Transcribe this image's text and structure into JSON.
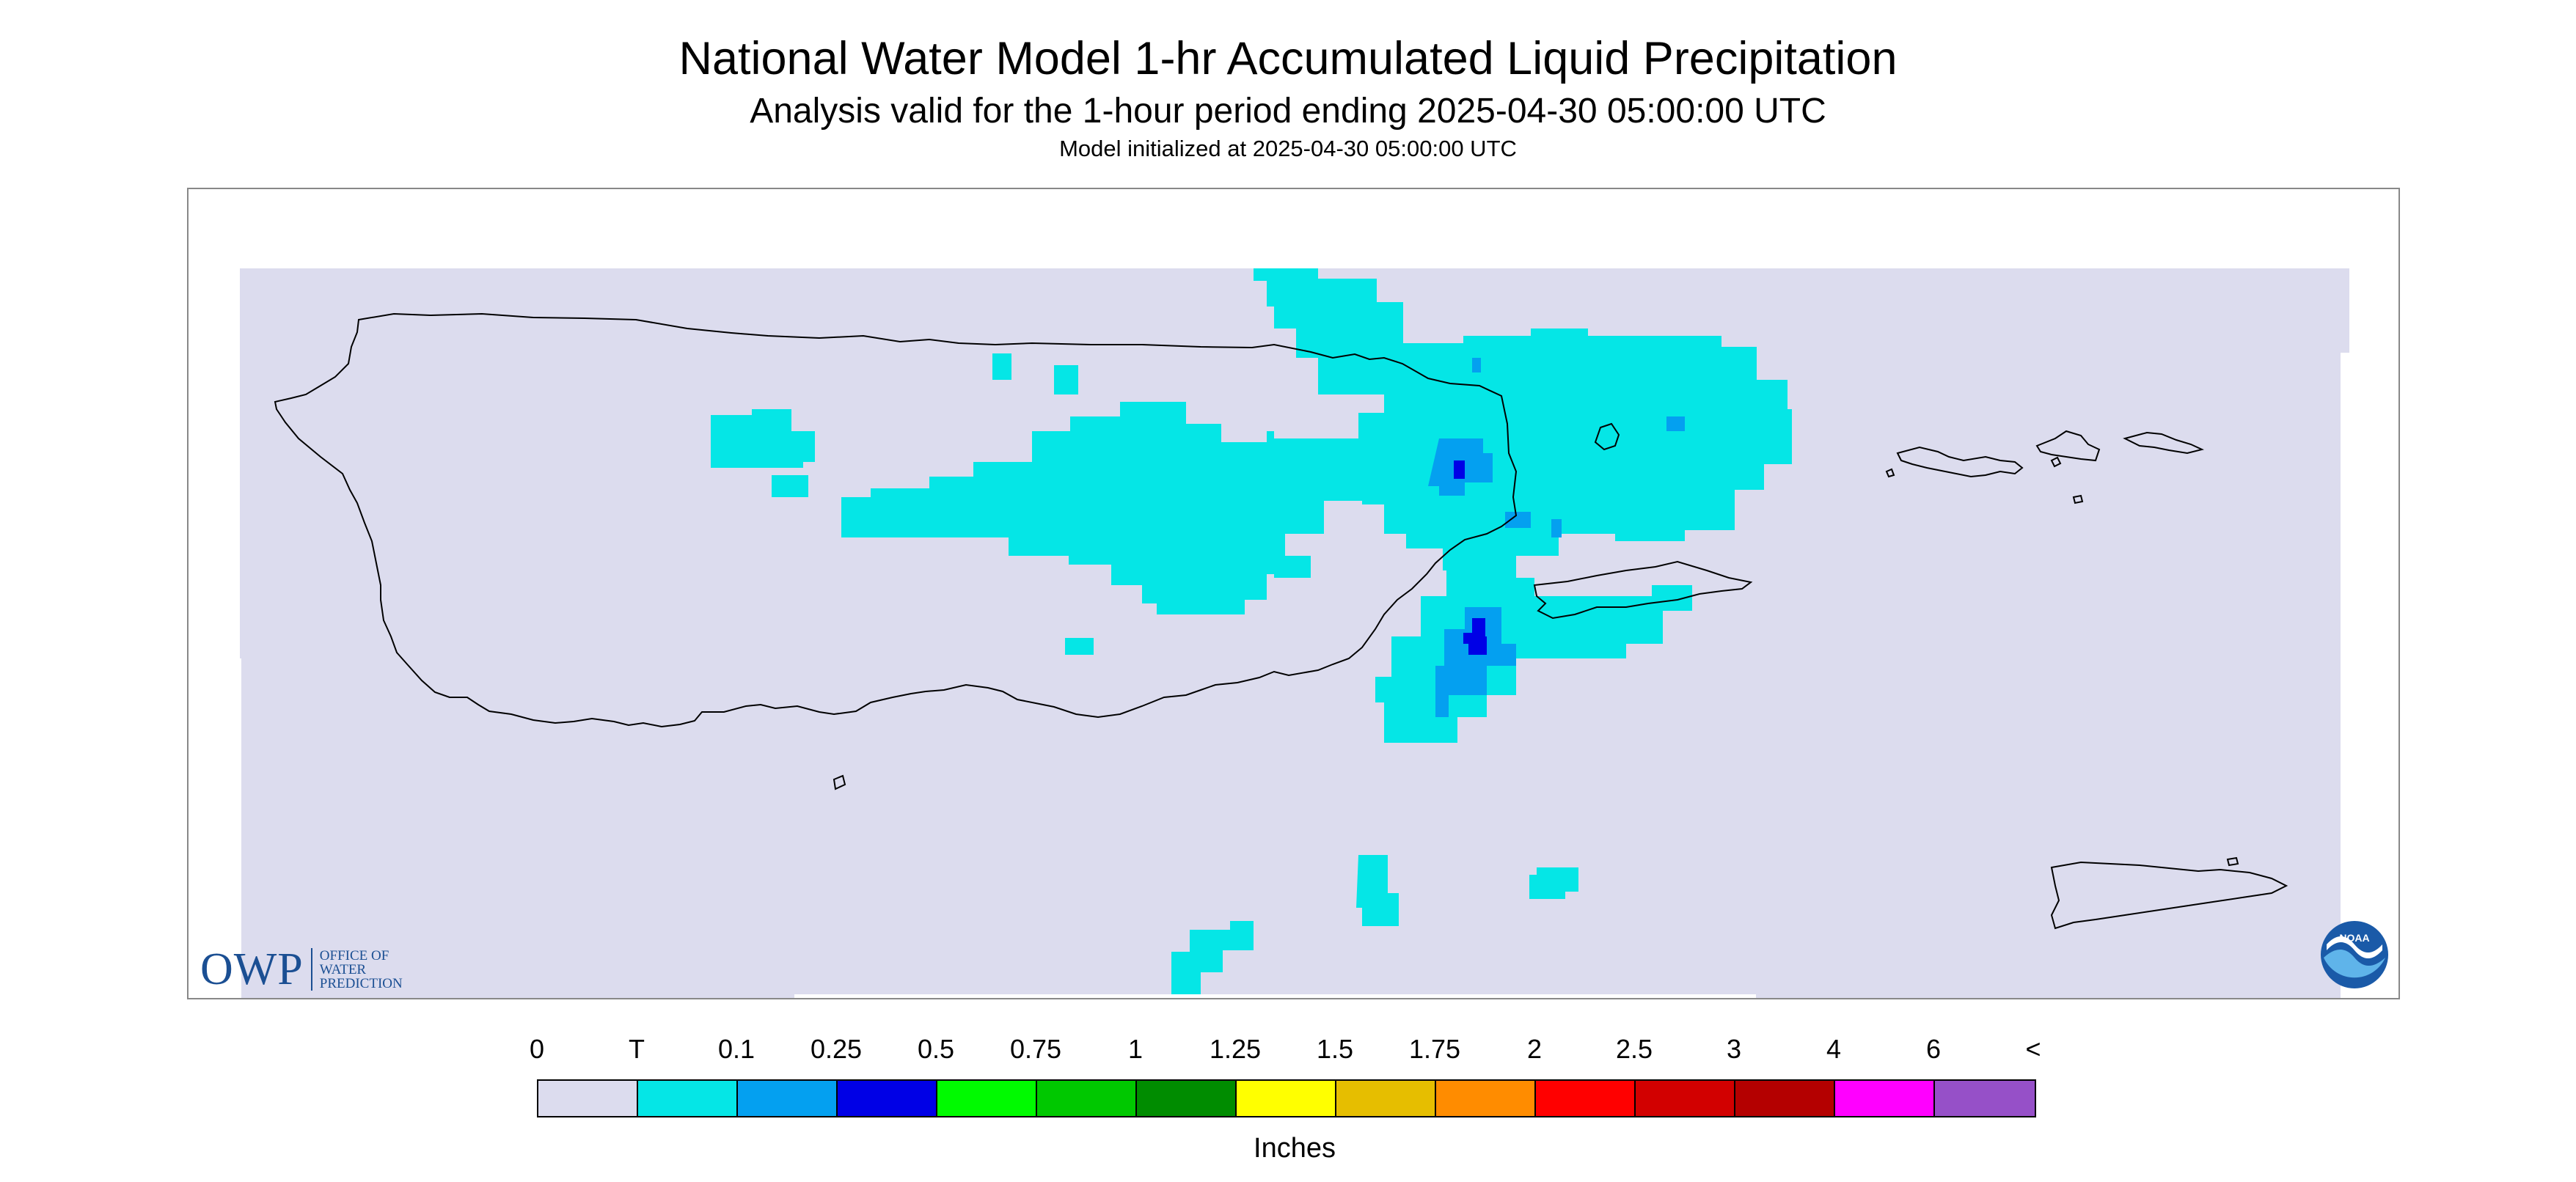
{
  "header": {
    "title": "National Water Model 1-hr Accumulated Liquid Precipitation",
    "subtitle": "Analysis valid for the 1-hour period ending 2025-04-30 05:00:00 UTC",
    "init": "Model initialized at 2025-04-30 05:00:00 UTC"
  },
  "logos": {
    "owp_mark": "OWP",
    "owp_line1": "OFFICE OF",
    "owp_line2": "WATER",
    "owp_line3": "PREDICTION",
    "noaa_text": "NOAA"
  },
  "legend": {
    "labels": [
      "0",
      "T",
      "0.1",
      "0.25",
      "0.5",
      "0.75",
      "1",
      "1.25",
      "1.5",
      "1.75",
      "2",
      "2.5",
      "3",
      "4",
      "6",
      "<"
    ],
    "colors": [
      "#dcdcee",
      "#05e6e6",
      "#04a0f0",
      "#0000e6",
      "#00fa00",
      "#00c800",
      "#008c00",
      "#ffff00",
      "#e6be00",
      "#ff8c00",
      "#ff0000",
      "#d20000",
      "#b40000",
      "#ff00ff",
      "#9650c8"
    ],
    "unit": "Inches"
  },
  "map": {
    "region": "Puerto Rico and U.S. Virgin Islands",
    "background_color": "#dcdcee",
    "light_precip_color": "#05e6e6",
    "moderate_precip_color": "#04a0f0",
    "heavy_precip_color": "#0000e6"
  }
}
